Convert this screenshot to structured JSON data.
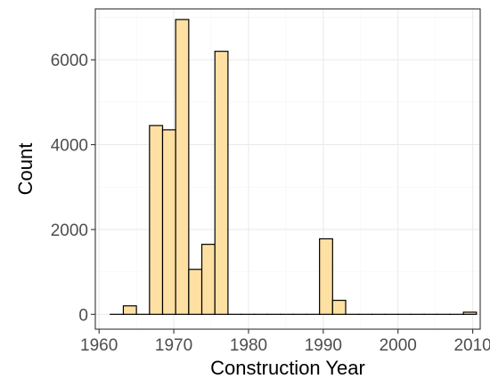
{
  "chart_data": {
    "type": "bar",
    "xlabel": "Construction Year",
    "ylabel": "Count",
    "xlim": [
      1959.5,
      2011
    ],
    "ylim": [
      -350,
      7200
    ],
    "x_ticks": [
      1960,
      1970,
      1980,
      1990,
      2000,
      2010
    ],
    "y_ticks": [
      0,
      2000,
      4000,
      6000
    ],
    "grid": true,
    "bar_color": "#ffe0a3",
    "bar_edge_color": "#000000",
    "bins": [
      {
        "x0": 1961.5,
        "x1": 1963.25,
        "count": 0
      },
      {
        "x0": 1963.25,
        "x1": 1965.0,
        "count": 200
      },
      {
        "x0": 1965.0,
        "x1": 1966.75,
        "count": 0
      },
      {
        "x0": 1966.75,
        "x1": 1968.5,
        "count": 4450
      },
      {
        "x0": 1968.5,
        "x1": 1970.25,
        "count": 4350
      },
      {
        "x0": 1970.25,
        "x1": 1972.0,
        "count": 6950
      },
      {
        "x0": 1972.0,
        "x1": 1973.75,
        "count": 1060
      },
      {
        "x0": 1973.75,
        "x1": 1975.5,
        "count": 1650
      },
      {
        "x0": 1975.5,
        "x1": 1977.25,
        "count": 6200
      },
      {
        "x0": 1977.25,
        "x1": 1979.0,
        "count": 0
      },
      {
        "x0": 1979.0,
        "x1": 1980.75,
        "count": 0
      },
      {
        "x0": 1980.75,
        "x1": 1982.5,
        "count": 0
      },
      {
        "x0": 1982.5,
        "x1": 1984.25,
        "count": 0
      },
      {
        "x0": 1984.25,
        "x1": 1986.0,
        "count": 0
      },
      {
        "x0": 1986.0,
        "x1": 1987.75,
        "count": 0
      },
      {
        "x0": 1987.75,
        "x1": 1989.5,
        "count": 0
      },
      {
        "x0": 1989.5,
        "x1": 1991.25,
        "count": 1780
      },
      {
        "x0": 1991.25,
        "x1": 1993.0,
        "count": 330
      },
      {
        "x0": 1993.0,
        "x1": 1994.75,
        "count": 0
      },
      {
        "x0": 1994.75,
        "x1": 1996.5,
        "count": 0
      },
      {
        "x0": 1996.5,
        "x1": 1998.25,
        "count": 0
      },
      {
        "x0": 1998.25,
        "x1": 2000.0,
        "count": 0
      },
      {
        "x0": 2000.0,
        "x1": 2001.75,
        "count": 0
      },
      {
        "x0": 2001.75,
        "x1": 2003.5,
        "count": 0
      },
      {
        "x0": 2003.5,
        "x1": 2005.25,
        "count": 0
      },
      {
        "x0": 2005.25,
        "x1": 2007.0,
        "count": 0
      },
      {
        "x0": 2007.0,
        "x1": 2008.75,
        "count": 0
      },
      {
        "x0": 2008.75,
        "x1": 2010.5,
        "count": 50
      }
    ]
  }
}
